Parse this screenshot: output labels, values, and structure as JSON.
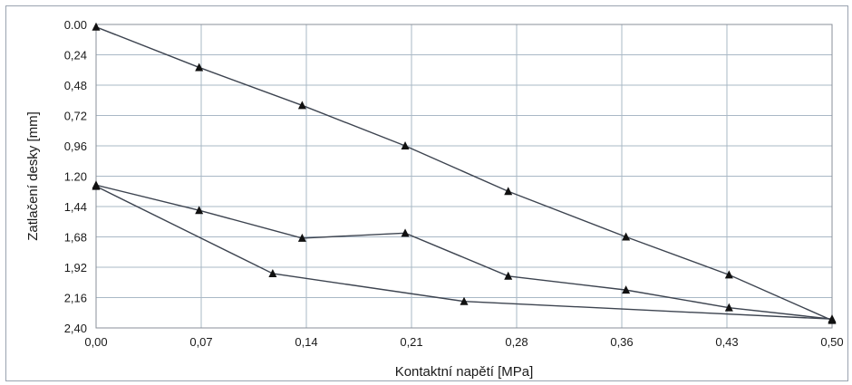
{
  "chart_data": {
    "type": "line",
    "title": "",
    "xlabel": "Kontaktní napětí [MPa]",
    "ylabel": "Zatlačení desky [mm]",
    "x_ticks": [
      "0,00",
      "0,07",
      "0,14",
      "0,21",
      "0,28",
      "0,36",
      "0,43",
      "0,50"
    ],
    "y_ticks": [
      "0.00",
      "0,24",
      "0,48",
      "0,72",
      "0,96",
      "1.20",
      "1,44",
      "1,68",
      "1,92",
      "2,16",
      "2,40"
    ],
    "xlim": [
      0,
      0.5
    ],
    "ylim": [
      0,
      2.4
    ],
    "y_inverted": true,
    "grid": true,
    "legend": "none",
    "marker": "triangle",
    "series": [
      {
        "x": [
          0.0,
          0.07,
          0.14,
          0.21,
          0.28,
          0.36,
          0.43,
          0.5
        ],
        "y": [
          0.02,
          0.34,
          0.64,
          0.96,
          1.32,
          1.68,
          1.98,
          2.34
        ]
      },
      {
        "x": [
          0.5,
          0.25,
          0.12,
          0.0
        ],
        "y": [
          2.33,
          2.19,
          1.97,
          1.28
        ]
      },
      {
        "x": [
          0.0,
          0.07,
          0.14,
          0.21,
          0.28,
          0.36,
          0.43,
          0.5
        ],
        "y": [
          1.27,
          1.47,
          1.69,
          1.65,
          1.99,
          2.1,
          2.24,
          2.33
        ]
      }
    ]
  },
  "colors": {
    "line": "#3d4450",
    "marker": "#111111",
    "grid": "#a9b8c6",
    "axis": "#8a8f98"
  }
}
